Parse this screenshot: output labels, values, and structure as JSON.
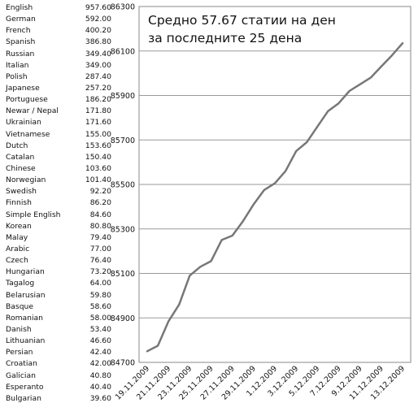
{
  "ranking": [
    {
      "language": "English",
      "value": "957.60"
    },
    {
      "language": "German",
      "value": "592.00"
    },
    {
      "language": "French",
      "value": "400.20"
    },
    {
      "language": "Spanish",
      "value": "386.80"
    },
    {
      "language": "Russian",
      "value": "349.40"
    },
    {
      "language": "Italian",
      "value": "349.00"
    },
    {
      "language": "Polish",
      "value": "287.40"
    },
    {
      "language": "Japanese",
      "value": "257.20"
    },
    {
      "language": "Portuguese",
      "value": "186.20"
    },
    {
      "language": "Newar / Nepal",
      "value": "171.80"
    },
    {
      "language": "Ukrainian",
      "value": "171.60"
    },
    {
      "language": "Vietnamese",
      "value": "155.00"
    },
    {
      "language": "Dutch",
      "value": "153.60"
    },
    {
      "language": "Catalan",
      "value": "150.40"
    },
    {
      "language": "Chinese",
      "value": "103.60"
    },
    {
      "language": "Norwegian",
      "value": "101.40"
    },
    {
      "language": "Swedish",
      "value": "92.20"
    },
    {
      "language": "Finnish",
      "value": "86.20"
    },
    {
      "language": "Simple English",
      "value": "84.60"
    },
    {
      "language": "Korean",
      "value": "80.80"
    },
    {
      "language": "Malay",
      "value": "79.40"
    },
    {
      "language": "Arabic",
      "value": "77.00"
    },
    {
      "language": "Czech",
      "value": "76.40"
    },
    {
      "language": "Hungarian",
      "value": "73.20"
    },
    {
      "language": "Tagalog",
      "value": "64.00"
    },
    {
      "language": "Belarusian",
      "value": "59.80"
    },
    {
      "language": "Basque",
      "value": "58.60"
    },
    {
      "language": "Romanian",
      "value": "58.00"
    },
    {
      "language": "Danish",
      "value": "53.40"
    },
    {
      "language": "Lithuanian",
      "value": "46.60"
    },
    {
      "language": "Persian",
      "value": "42.40"
    },
    {
      "language": "Croatian",
      "value": "42.00"
    },
    {
      "language": "Galician",
      "value": "40.80"
    },
    {
      "language": "Esperanto",
      "value": "40.40"
    },
    {
      "language": "Bulgarian",
      "value": "39.60"
    }
  ],
  "chart_data": {
    "type": "line",
    "title": [
      "Средно 57.67 статии на ден",
      "за последните 25 дена"
    ],
    "xlabel": "",
    "ylabel": "",
    "grid": true,
    "ylim": [
      84700,
      86300
    ],
    "yticks": [
      84700,
      84900,
      85100,
      85300,
      85500,
      85700,
      85900,
      86100,
      86300
    ],
    "x": [
      "19.11.2009",
      "20.11.2009",
      "21.11.2009",
      "22.11.2009",
      "23.11.2009",
      "24.11.2009",
      "25.11.2009",
      "26.11.2009",
      "27.11.2009",
      "28.11.2009",
      "29.11.2009",
      "30.11.2009",
      "1.12.2009",
      "2.12.2009",
      "3.12.2009",
      "4.12.2009",
      "5.12.2009",
      "6.12.2009",
      "7.12.2009",
      "8.12.2009",
      "9.12.2009",
      "10.12.2009",
      "11.12.2009",
      "12.12.2009",
      "13.12.2009"
    ],
    "x_tick_labels": [
      "19.11.2009",
      "21.11.2009",
      "23.11.2009",
      "25.11.2009",
      "27.11.2009",
      "29.11.2009",
      "1.12.2009",
      "3.12.2009",
      "5.12.2009",
      "7.12.2009",
      "9.12.2009",
      "11.12.2009",
      "13.12.2009"
    ],
    "series": [
      {
        "values": [
          84750,
          84775,
          84885,
          84960,
          85090,
          85130,
          85155,
          85250,
          85270,
          85335,
          85410,
          85475,
          85505,
          85560,
          85650,
          85690,
          85760,
          85830,
          85865,
          85920,
          85950,
          85980,
          86030,
          86080,
          86135
        ]
      }
    ]
  }
}
